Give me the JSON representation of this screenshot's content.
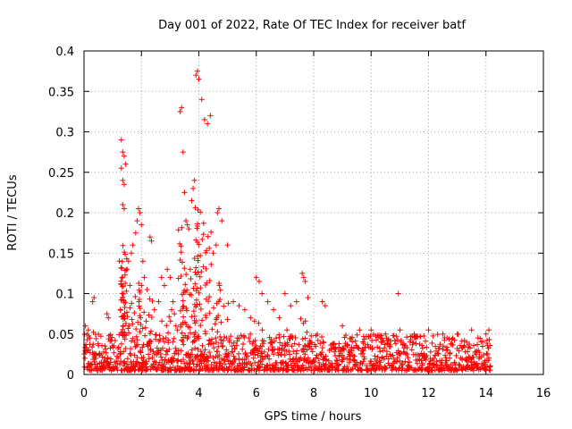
{
  "chart_data": {
    "type": "scatter",
    "title": "Day 001 of 2022, Rate Of TEC Index for receiver batf",
    "xlabel": "GPS time / hours",
    "ylabel": "ROTI / TECUs",
    "xlim": [
      0,
      16
    ],
    "ylim": [
      0,
      0.4
    ],
    "xticks": [
      "0",
      "2",
      "4",
      "6",
      "8",
      "10",
      "12",
      "14",
      "16"
    ],
    "yticks": [
      "0",
      "0.05",
      "0.1",
      "0.15",
      "0.2",
      "0.25",
      "0.3",
      "0.35",
      "0.4"
    ],
    "grid": true,
    "marker": "+",
    "color": "#ff0000",
    "series": [
      {
        "name": "ROTI",
        "baseline_range": [
          0.005,
          0.05
        ],
        "data_extent_hours": [
          0,
          14.15
        ],
        "x": [
          0.05,
          0.1,
          0.15,
          0.2,
          0.3,
          0.35,
          0.8,
          0.85,
          1.3,
          1.35,
          1.4,
          1.45,
          1.3,
          1.35,
          1.4,
          1.4,
          1.35,
          1.5,
          1.55,
          1.6,
          1.65,
          1.7,
          1.8,
          1.85,
          1.9,
          1.95,
          2.0,
          2.05,
          2.1,
          2.2,
          2.3,
          2.35,
          2.45,
          2.6,
          2.7,
          2.8,
          2.9,
          3.0,
          3.05,
          3.1,
          3.15,
          3.2,
          3.25,
          3.35,
          3.4,
          3.45,
          3.5,
          3.55,
          3.6,
          3.65,
          3.7,
          3.75,
          3.8,
          3.85,
          3.9,
          3.95,
          4.0,
          4.1,
          4.2,
          4.3,
          4.4,
          4.5,
          4.6,
          4.65,
          4.7,
          4.8,
          5.0,
          5.2,
          5.4,
          5.6,
          5.8,
          6.0,
          6.1,
          6.2,
          6.4,
          6.6,
          6.8,
          7.0,
          7.2,
          7.4,
          7.6,
          7.65,
          7.7,
          7.8,
          8.3,
          8.4,
          9.0,
          9.6,
          10.0,
          10.5,
          10.95,
          11.5,
          12.0,
          12.5,
          13.0,
          13.5,
          14.0,
          14.1
        ],
        "y": [
          0.06,
          0.05,
          0.055,
          0.045,
          0.09,
          0.095,
          0.075,
          0.07,
          0.29,
          0.275,
          0.27,
          0.26,
          0.255,
          0.24,
          0.235,
          0.205,
          0.21,
          0.13,
          0.14,
          0.11,
          0.15,
          0.16,
          0.175,
          0.19,
          0.205,
          0.2,
          0.185,
          0.14,
          0.12,
          0.105,
          0.17,
          0.165,
          0.08,
          0.09,
          0.12,
          0.11,
          0.13,
          0.12,
          0.08,
          0.09,
          0.075,
          0.06,
          0.055,
          0.325,
          0.33,
          0.275,
          0.225,
          0.19,
          0.185,
          0.18,
          0.13,
          0.215,
          0.23,
          0.24,
          0.37,
          0.375,
          0.365,
          0.34,
          0.315,
          0.31,
          0.32,
          0.15,
          0.16,
          0.2,
          0.205,
          0.19,
          0.16,
          0.09,
          0.085,
          0.08,
          0.07,
          0.12,
          0.115,
          0.1,
          0.09,
          0.08,
          0.07,
          0.1,
          0.085,
          0.09,
          0.125,
          0.12,
          0.115,
          0.095,
          0.09,
          0.085,
          0.06,
          0.055,
          0.055,
          0.05,
          0.1,
          0.05,
          0.055,
          0.05,
          0.05,
          0.055,
          0.05,
          0.055
        ]
      }
    ]
  }
}
